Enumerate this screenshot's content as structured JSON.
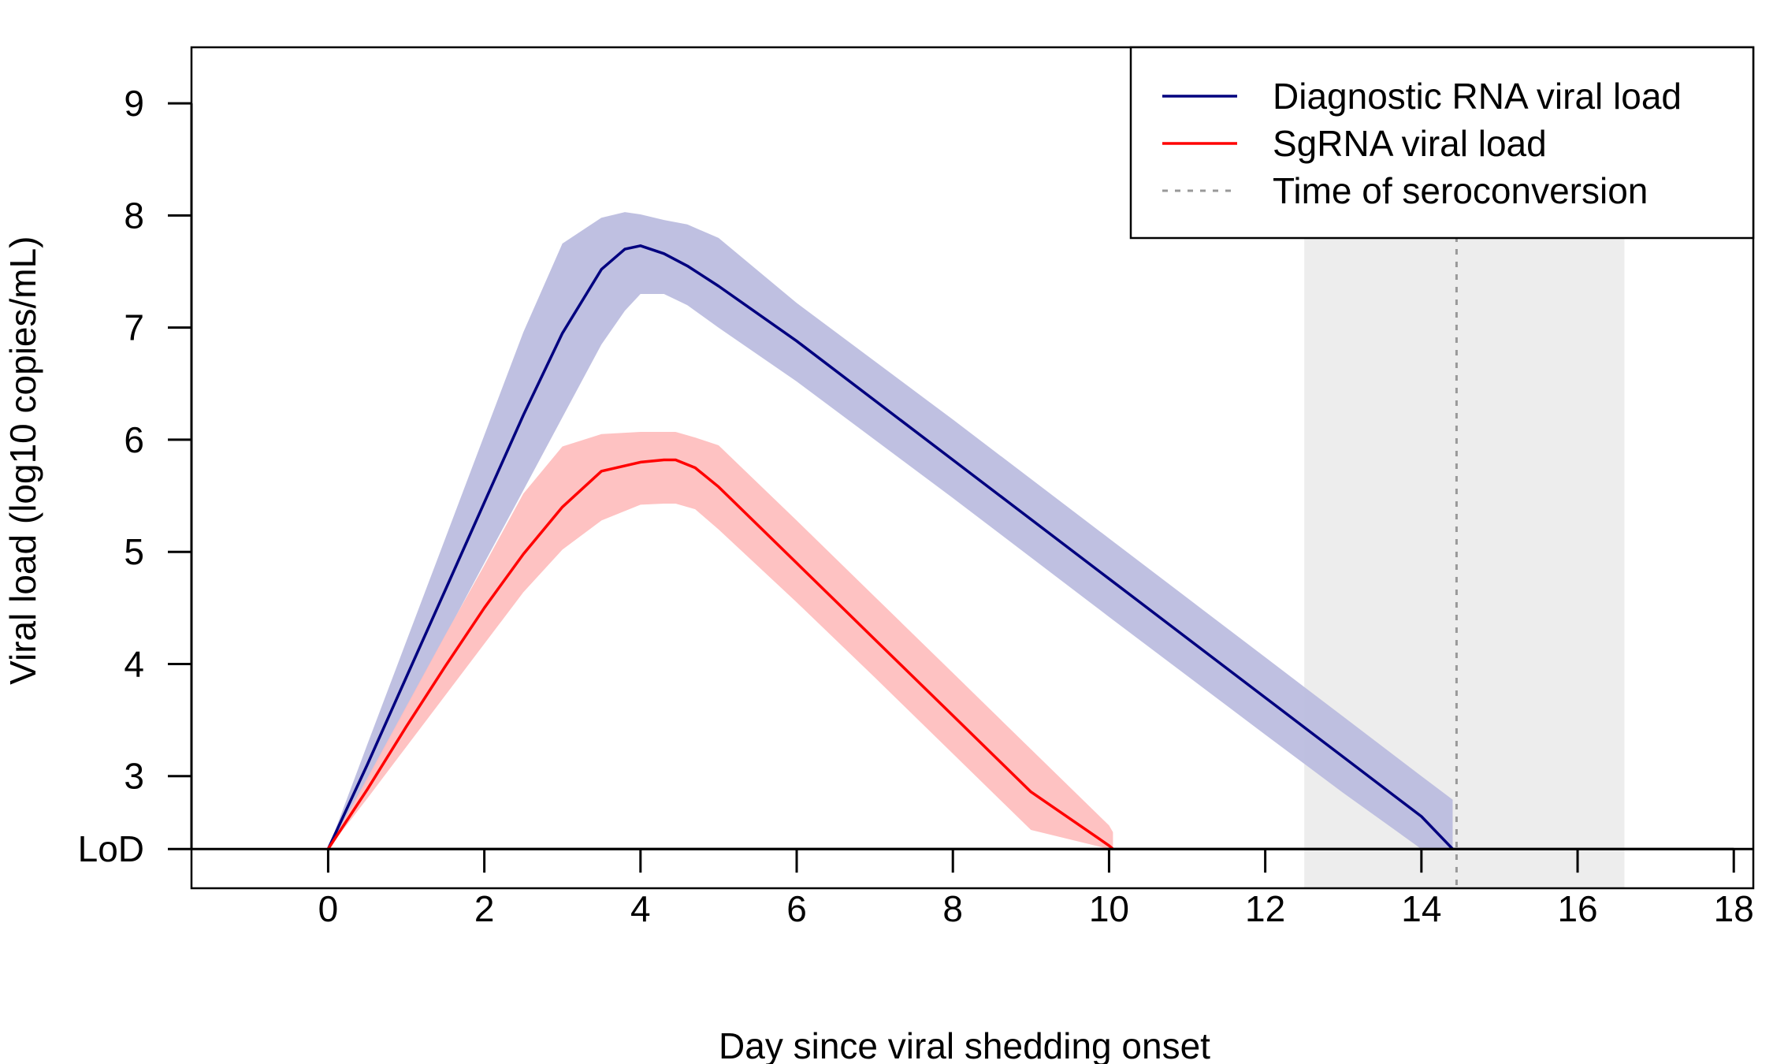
{
  "chart_data": {
    "type": "line",
    "title": "",
    "xlabel": "Day since viral shedding onset",
    "ylabel": "Viral load (log10 copies/mL)",
    "xlim": [
      -1.75,
      18.25
    ],
    "ylim": [
      2.0,
      9.5
    ],
    "x_ticks": [
      0,
      2,
      4,
      6,
      8,
      10,
      12,
      14,
      16,
      18
    ],
    "y_ticks": [
      {
        "value": 2.35,
        "label": "LoD"
      },
      {
        "value": 3,
        "label": "3"
      },
      {
        "value": 4,
        "label": "4"
      },
      {
        "value": 5,
        "label": "5"
      },
      {
        "value": 6,
        "label": "6"
      },
      {
        "value": 7,
        "label": "7"
      },
      {
        "value": 8,
        "label": "8"
      },
      {
        "value": 9,
        "label": "9"
      }
    ],
    "lod_value": 2.35,
    "series": [
      {
        "name": "Diagnostic RNA viral load",
        "color": "#00007F",
        "band_color": "#BCBDDF",
        "x": [
          0,
          0.5,
          1,
          1.5,
          2,
          2.5,
          3,
          3.5,
          3.8,
          4,
          4.3,
          4.6,
          5,
          6,
          8,
          10,
          12,
          13,
          14,
          14.4
        ],
        "y": [
          2.35,
          3.1,
          3.88,
          4.66,
          5.44,
          6.22,
          6.95,
          7.52,
          7.7,
          7.73,
          7.66,
          7.55,
          7.37,
          6.88,
          5.82,
          4.76,
          3.7,
          3.17,
          2.64,
          2.35
        ],
        "lower": [
          2.35,
          2.95,
          3.6,
          4.25,
          4.9,
          5.55,
          6.2,
          6.85,
          7.15,
          7.3,
          7.3,
          7.2,
          7.0,
          6.52,
          5.48,
          4.42,
          3.37,
          2.85,
          2.35,
          2.35
        ],
        "upper": [
          2.35,
          3.28,
          4.2,
          5.12,
          6.04,
          6.96,
          7.75,
          7.98,
          8.03,
          8.01,
          7.96,
          7.92,
          7.8,
          7.22,
          6.18,
          5.12,
          4.06,
          3.53,
          3.0,
          2.79
        ]
      },
      {
        "name": "SgRNA viral load",
        "color": "#FF0000",
        "band_color": "#FEBFBF",
        "x": [
          0,
          0.5,
          1,
          1.5,
          2,
          2.5,
          3,
          3.5,
          4,
          4.3,
          4.45,
          4.7,
          5,
          6,
          7,
          8,
          9,
          10,
          10.05
        ],
        "y": [
          2.35,
          2.88,
          3.44,
          3.98,
          4.5,
          4.98,
          5.4,
          5.72,
          5.8,
          5.82,
          5.82,
          5.75,
          5.58,
          4.9,
          4.22,
          3.54,
          2.86,
          2.38,
          2.35
        ],
        "lower": [
          2.35,
          2.8,
          3.26,
          3.72,
          4.18,
          4.64,
          5.02,
          5.28,
          5.42,
          5.43,
          5.43,
          5.38,
          5.2,
          4.55,
          3.88,
          3.2,
          2.52,
          2.35,
          2.35
        ],
        "upper": [
          2.35,
          2.98,
          3.62,
          4.26,
          4.88,
          5.52,
          5.94,
          6.05,
          6.07,
          6.07,
          6.07,
          6.02,
          5.95,
          5.28,
          4.6,
          3.92,
          3.24,
          2.56,
          2.5
        ]
      }
    ],
    "seroconversion": {
      "name": "Time of seroconversion",
      "day": 14.45,
      "interval": [
        12.5,
        16.6
      ],
      "line_color": "#999999",
      "shade_color": "#EDEDED"
    },
    "legend": {
      "position": "top-right",
      "entries": [
        "Diagnostic RNA viral load",
        "SgRNA viral load",
        "Time of seroconversion"
      ]
    }
  }
}
